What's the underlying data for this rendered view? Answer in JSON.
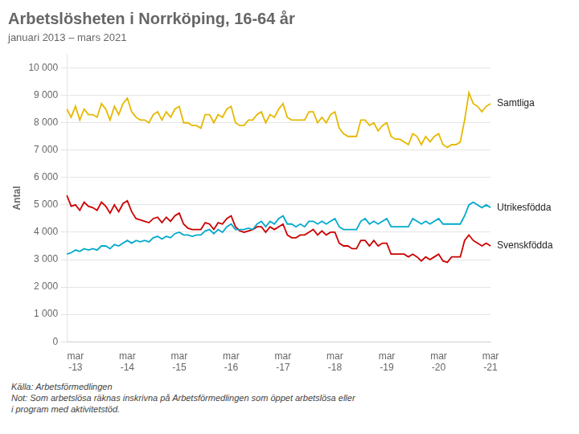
{
  "chart_data": {
    "type": "line",
    "title": "Arbetslösheten i Norrköping, 16-64 år",
    "subtitle": "januari 2013 – mars 2021",
    "ylabel": "Antal",
    "source_text": "Källa: Arbetsförmedlingen\nNot: Som arbetslösa räknas inskrivna på Arbetsförmedlingen som öppet arbetslösa eller\ni program med aktivitetstöd.",
    "categories": [
      null,
      null,
      "mar\n-13",
      null,
      null,
      null,
      null,
      null,
      null,
      null,
      null,
      null,
      null,
      null,
      "mar\n-14",
      null,
      null,
      null,
      null,
      null,
      null,
      null,
      null,
      null,
      null,
      null,
      "mar\n-15",
      null,
      null,
      null,
      null,
      null,
      null,
      null,
      null,
      null,
      null,
      null,
      "mar\n-16",
      null,
      null,
      null,
      null,
      null,
      null,
      null,
      null,
      null,
      null,
      null,
      "mar\n-17",
      null,
      null,
      null,
      null,
      null,
      null,
      null,
      null,
      null,
      null,
      null,
      "mar\n-18",
      null,
      null,
      null,
      null,
      null,
      null,
      null,
      null,
      null,
      null,
      null,
      "mar\n-19",
      null,
      null,
      null,
      null,
      null,
      null,
      null,
      null,
      null,
      null,
      null,
      "mar\n-20",
      null,
      null,
      null,
      null,
      null,
      null,
      null,
      null,
      null,
      null,
      null,
      "mar\n-21"
    ],
    "series": [
      {
        "name": "Samtliga",
        "color": "#e6b800",
        "values": [
          8500,
          8200,
          8600,
          8100,
          8500,
          8300,
          8300,
          8200,
          8700,
          8500,
          8100,
          8600,
          8300,
          8700,
          8900,
          8400,
          8200,
          8100,
          8100,
          8000,
          8300,
          8400,
          8100,
          8400,
          8200,
          8500,
          8600,
          8000,
          8000,
          7900,
          7900,
          7800,
          8300,
          8300,
          8000,
          8300,
          8200,
          8500,
          8600,
          8000,
          7900,
          7900,
          8100,
          8100,
          8300,
          8400,
          8000,
          8300,
          8200,
          8500,
          8700,
          8200,
          8100,
          8100,
          8100,
          8100,
          8400,
          8400,
          8000,
          8200,
          8000,
          8300,
          8400,
          7800,
          7600,
          7500,
          7500,
          7500,
          8100,
          8100,
          7900,
          8000,
          7700,
          7900,
          8000,
          7500,
          7400,
          7400,
          7300,
          7200,
          7600,
          7500,
          7200,
          7500,
          7300,
          7500,
          7600,
          7200,
          7100,
          7200,
          7200,
          7300,
          8100,
          9100,
          8700,
          8600,
          8400,
          8600,
          8700
        ]
      },
      {
        "name": "Utrikesfödda",
        "color": "#00aacc",
        "values": [
          3200,
          3250,
          3350,
          3300,
          3400,
          3350,
          3400,
          3350,
          3500,
          3500,
          3400,
          3550,
          3500,
          3600,
          3700,
          3600,
          3700,
          3650,
          3700,
          3650,
          3800,
          3850,
          3750,
          3850,
          3800,
          3950,
          4000,
          3900,
          3900,
          3850,
          3900,
          3900,
          4050,
          4100,
          3950,
          4100,
          4000,
          4200,
          4300,
          4100,
          4100,
          4100,
          4150,
          4100,
          4300,
          4400,
          4200,
          4400,
          4300,
          4500,
          4600,
          4300,
          4300,
          4200,
          4300,
          4200,
          4400,
          4400,
          4300,
          4400,
          4300,
          4400,
          4500,
          4200,
          4100,
          4100,
          4100,
          4100,
          4400,
          4500,
          4300,
          4400,
          4300,
          4400,
          4500,
          4200,
          4200,
          4200,
          4200,
          4200,
          4500,
          4400,
          4300,
          4400,
          4300,
          4400,
          4500,
          4300,
          4300,
          4300,
          4300,
          4300,
          4600,
          5000,
          5100,
          5000,
          4900,
          5000,
          4900
        ]
      },
      {
        "name": "Svenskfödda",
        "color": "#cc0000",
        "values": [
          5350,
          4950,
          5000,
          4800,
          5100,
          4950,
          4900,
          4800,
          5100,
          4950,
          4700,
          5000,
          4750,
          5050,
          5150,
          4750,
          4500,
          4450,
          4400,
          4350,
          4500,
          4550,
          4350,
          4550,
          4400,
          4600,
          4700,
          4300,
          4150,
          4100,
          4100,
          4100,
          4350,
          4300,
          4100,
          4350,
          4300,
          4500,
          4600,
          4200,
          4050,
          4000,
          4050,
          4100,
          4200,
          4200,
          4000,
          4200,
          4100,
          4200,
          4300,
          3900,
          3800,
          3800,
          3900,
          3900,
          4000,
          4100,
          3900,
          4050,
          3900,
          4000,
          4000,
          3600,
          3500,
          3500,
          3400,
          3400,
          3700,
          3700,
          3500,
          3700,
          3500,
          3600,
          3600,
          3200,
          3200,
          3200,
          3200,
          3100,
          3200,
          3100,
          2950,
          3100,
          3000,
          3100,
          3200,
          2950,
          2900,
          3100,
          3100,
          3100,
          3700,
          3900,
          3700,
          3600,
          3500,
          3600,
          3500
        ]
      }
    ],
    "ylim": [
      0,
      10500
    ],
    "yticks": [
      0,
      {
        "value": 1000,
        "label": "1 000"
      },
      {
        "value": 2000,
        "label": "2 000"
      },
      {
        "value": 3000,
        "label": "3 000"
      },
      {
        "value": 4000,
        "label": "4 000"
      },
      {
        "value": 5000,
        "label": "5 000"
      },
      {
        "value": 6000,
        "label": "6 000"
      },
      {
        "value": 7000,
        "label": "7 000"
      },
      {
        "value": 8000,
        "label": "8 000"
      },
      {
        "value": 9000,
        "label": "9 000"
      },
      {
        "value": 10000,
        "label": "10 000"
      }
    ],
    "grid": true
  }
}
